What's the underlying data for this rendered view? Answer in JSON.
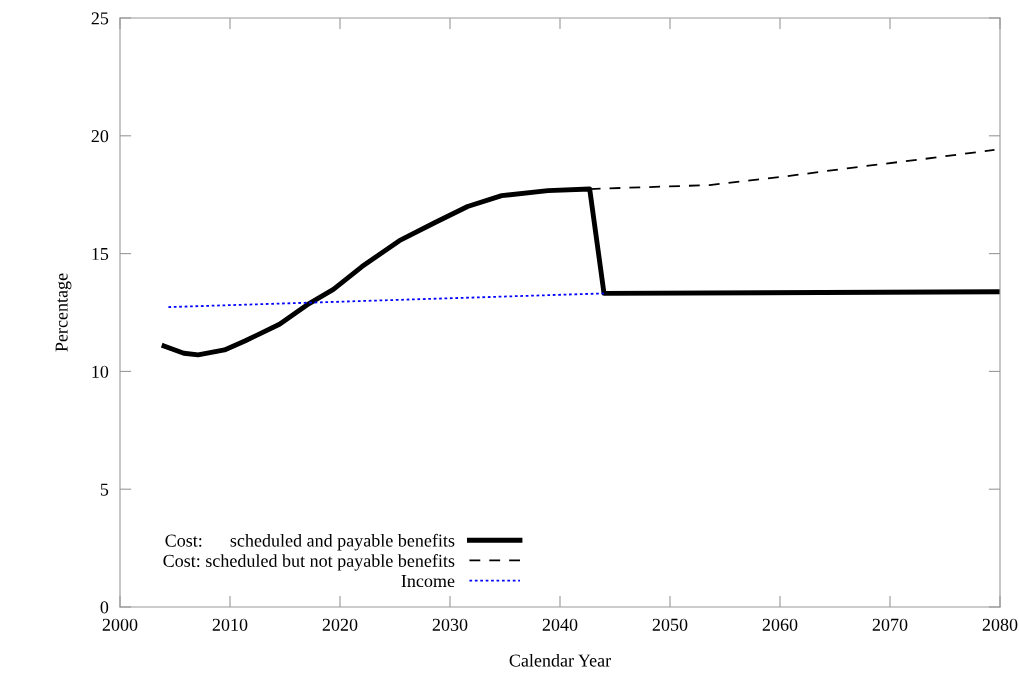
{
  "chart_data": {
    "type": "line",
    "xlabel": "Calendar Year",
    "ylabel": "Percentage",
    "xlim": [
      2000,
      2080
    ],
    "xticks": [
      2000,
      2010,
      2020,
      2030,
      2040,
      2050,
      2060,
      2070,
      2080
    ],
    "ylim": [
      0,
      25
    ],
    "yticks": [
      0,
      5,
      10,
      15,
      20,
      25
    ],
    "grid": false,
    "legend": "bottom left",
    "series": [
      {
        "name": "Cost:      scheduled and payable benefits",
        "color": "#000000",
        "line_style": "solid",
        "x": [
          2004.0,
          2005.8,
          2007.1,
          2009.5,
          2011.4,
          2014.5,
          2017.0,
          2019.4,
          2022.0,
          2025.4,
          2028.6,
          2031.6,
          2034.7,
          2038.9,
          2042.7,
          2044.0,
          2080.0
        ],
        "values": [
          11.08,
          10.77,
          10.7,
          10.91,
          11.3,
          12.0,
          12.82,
          13.48,
          14.45,
          15.55,
          16.31,
          17.0,
          17.46,
          17.67,
          17.74,
          13.31,
          13.38
        ]
      },
      {
        "name": "Cost: scheduled but not payable benefits",
        "color": "#000000",
        "line_style": "dashed",
        "x": [
          2042.7,
          2053.6,
          2060.4,
          2066.1,
          2072.8,
          2079.5
        ],
        "values": [
          17.74,
          17.91,
          18.27,
          18.62,
          19.0,
          19.4
        ]
      },
      {
        "name": "Income",
        "color": "#0000ff",
        "line_style": "dotted",
        "x": [
          2004.4,
          2044.0
        ],
        "values": [
          12.73,
          13.31
        ]
      }
    ]
  }
}
